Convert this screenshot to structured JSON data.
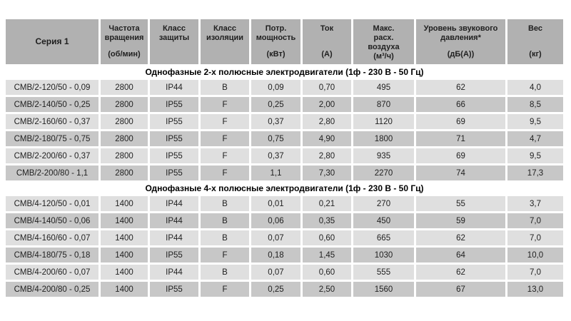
{
  "table": {
    "headers": [
      {
        "lines": [
          "Серия 1"
        ],
        "unit": ""
      },
      {
        "lines": [
          "Частота",
          "вращения"
        ],
        "unit": "(об/мин)"
      },
      {
        "lines": [
          "Класс",
          "защиты"
        ],
        "unit": ""
      },
      {
        "lines": [
          "Класс",
          "изоляции"
        ],
        "unit": ""
      },
      {
        "lines": [
          "Потр.",
          "мощность"
        ],
        "unit": "(кВт)"
      },
      {
        "lines": [
          "Ток"
        ],
        "unit": "(А)"
      },
      {
        "lines": [
          "Макс.",
          "расх.",
          "воздуха"
        ],
        "unit": "(м³/ч)"
      },
      {
        "lines": [
          "Уровень звукового",
          "давления*"
        ],
        "unit": "(дБ(А))"
      },
      {
        "lines": [
          "Вес"
        ],
        "unit": "(кг)"
      }
    ],
    "sections": [
      {
        "title": "Однофазные 2-х полюсные электродвигатели (1ф - 230 В - 50 Гц)",
        "rows": [
          [
            "CMB/2-120/50 - 0,09",
            "2800",
            "IP44",
            "B",
            "0,09",
            "0,70",
            "495",
            "62",
            "4,0"
          ],
          [
            "CMB/2-140/50 - 0,25",
            "2800",
            "IP55",
            "F",
            "0,25",
            "2,00",
            "870",
            "66",
            "8,5"
          ],
          [
            "CMB/2-160/60 - 0,37",
            "2800",
            "IP55",
            "F",
            "0,37",
            "2,80",
            "1120",
            "69",
            "9,5"
          ],
          [
            "CMB/2-180/75 - 0,75",
            "2800",
            "IP55",
            "F",
            "0,75",
            "4,90",
            "1800",
            "71",
            "4,7"
          ],
          [
            "CMB/2-200/60 - 0,37",
            "2800",
            "IP55",
            "F",
            "0,37",
            "2,80",
            "935",
            "69",
            "9,5"
          ],
          [
            "CMB/2-200/80 - 1,1",
            "2800",
            "IP55",
            "F",
            "1,1",
            "7,30",
            "2270",
            "74",
            "17,3"
          ]
        ]
      },
      {
        "title": "Однофазные 4-х полюсные электродвигатели (1ф - 230 В - 50 Гц)",
        "rows": [
          [
            "CMB/4-120/50 - 0,01",
            "1400",
            "IP44",
            "B",
            "0,01",
            "0,21",
            "270",
            "55",
            "3,7"
          ],
          [
            "CMB/4-140/50 - 0,06",
            "1400",
            "IP44",
            "B",
            "0,06",
            "0,35",
            "450",
            "59",
            "7,0"
          ],
          [
            "CMB/4-160/60 - 0,07",
            "1400",
            "IP44",
            "B",
            "0,07",
            "0,60",
            "665",
            "62",
            "7,0"
          ],
          [
            "CMB/4-180/75 - 0,18",
            "1400",
            "IP55",
            "F",
            "0,18",
            "1,45",
            "1030",
            "64",
            "10,0"
          ],
          [
            "CMB/4-200/60 - 0,07",
            "1400",
            "IP44",
            "B",
            "0,07",
            "0,60",
            "555",
            "62",
            "7,0"
          ],
          [
            "CMB/4-200/80 - 0,25",
            "1400",
            "IP55",
            "F",
            "0,25",
            "2,50",
            "1560",
            "67",
            "13,0"
          ]
        ]
      }
    ],
    "colors": {
      "page_bg": "#ffffff",
      "header_bg": "#b1b1b1",
      "row_light": "#dfdfdf",
      "row_dark": "#c7c7c7",
      "cell_text": "#1f1f1f",
      "section_title_text": "#000000"
    }
  }
}
